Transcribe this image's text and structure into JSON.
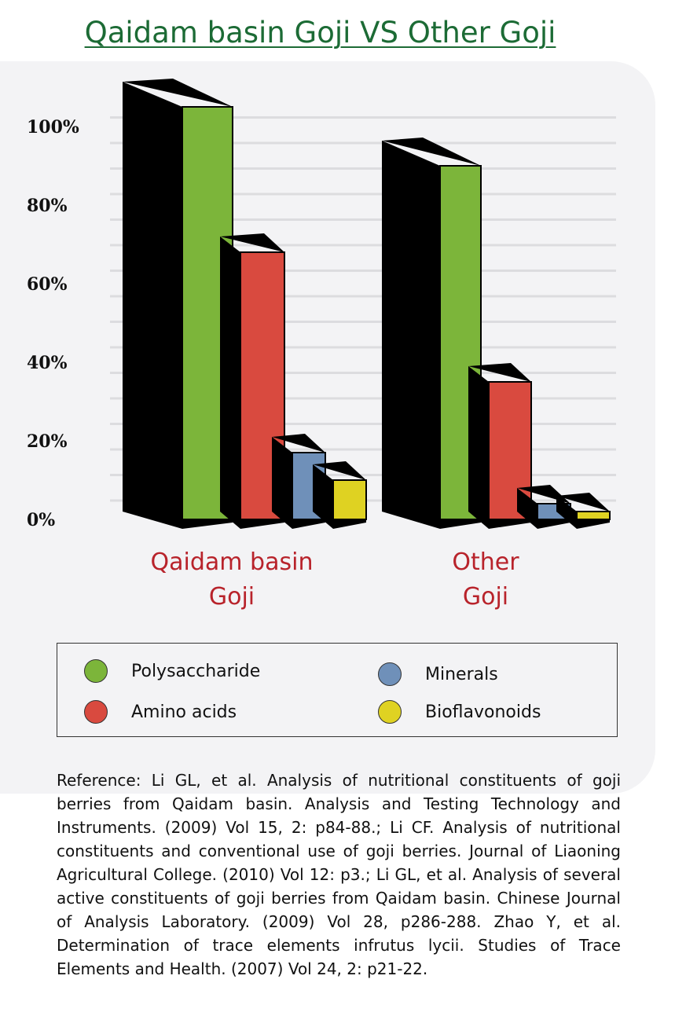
{
  "title": "Qaidam basin Goji VS Other Goji",
  "colors": {
    "title": "#1c6b35",
    "group_label": "#b8232b",
    "Polysaccharide": "#7cb53a",
    "Amino acids": "#d94a3f",
    "Minerals": "#6f90b9",
    "Bioflavonoids": "#dfd222",
    "bar_shadow": "#000000",
    "panel": "#f3f3f5"
  },
  "chart_data": {
    "type": "bar",
    "title": "Qaidam basin Goji VS Other Goji",
    "categories": [
      "Qaidam basin Goji",
      "Other Goji"
    ],
    "category_labels": [
      [
        "Qaidam basin",
        "Goji"
      ],
      [
        "Other",
        "Goji"
      ]
    ],
    "series": [
      {
        "name": "Polysaccharide",
        "values": [
          105,
          90
        ]
      },
      {
        "name": "Amino acids",
        "values": [
          68,
          35
        ]
      },
      {
        "name": "Minerals",
        "values": [
          17,
          4
        ]
      },
      {
        "name": "Bioflavonoids",
        "values": [
          10,
          2
        ]
      }
    ],
    "yticks": [
      "0%",
      "20%",
      "40%",
      "60%",
      "80%",
      "100%"
    ],
    "ylim": [
      0,
      100
    ],
    "grid": true,
    "legend_position": "bottom"
  },
  "legend": {
    "items": [
      {
        "label": "Polysaccharide",
        "color": "#7cb53a"
      },
      {
        "label": "Amino acids",
        "color": "#d94a3f"
      },
      {
        "label": "Minerals",
        "color": "#6f90b9"
      },
      {
        "label": "Bioflavonoids",
        "color": "#dfd222"
      }
    ]
  },
  "reference": "Reference: Li GL, et al. Analysis of nutritional constituents of goji berries from Qaidam basin. Analysis and Testing Technology and Instruments. (2009) Vol 15, 2: p84-88.;  Li CF. Analysis of nutritional constituents and conventional use of goji berries. Journal of Liaoning Agricultural College. (2010) Vol 12: p3.; Li GL, et al. Analysis of several active constituents of goji berries from Qaidam basin. Chinese Journal of Analysis Laboratory. (2009) Vol 28, p286-288. Zhao Y, et al. Determination of trace elements infrutus lycii. Studies of Trace Elements and Health. (2007) Vol 24, 2: p21-22."
}
